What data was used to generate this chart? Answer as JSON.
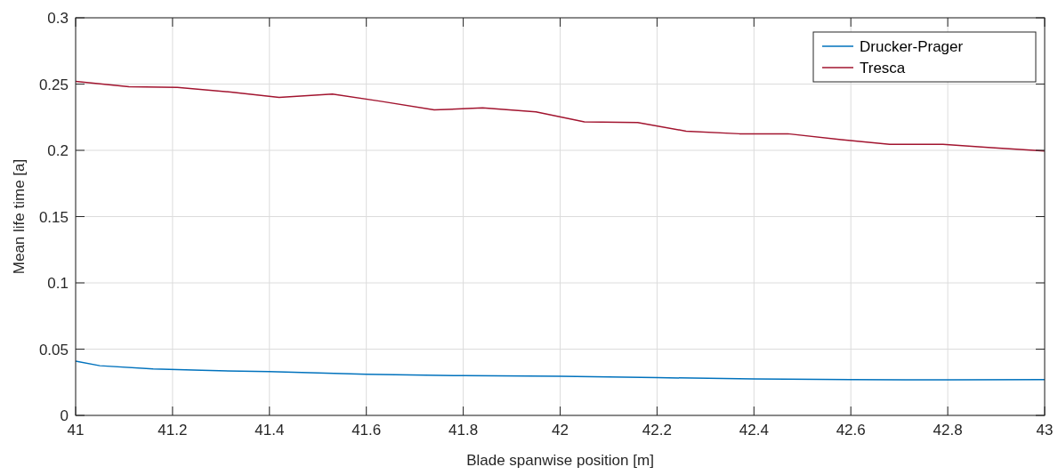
{
  "chart_data": {
    "type": "line",
    "xlabel": "Blade spanwise position [m]",
    "ylabel": "Mean life time [a]",
    "xlim": [
      41,
      43
    ],
    "xticks": [
      41,
      41.2,
      41.4,
      41.6,
      41.8,
      42,
      42.2,
      42.4,
      42.6,
      42.8,
      43
    ],
    "ylim": [
      0,
      0.3
    ],
    "yticks": [
      0,
      0.05,
      0.1,
      0.15,
      0.2,
      0.25,
      0.3
    ],
    "grid": true,
    "legend": "top right",
    "line_style": "solid",
    "marker": "none",
    "series": [
      {
        "name": "Drucker-Prager",
        "color": "#0072bd",
        "x": [
          41,
          41.05,
          41.16,
          41.26,
          41.4,
          41.6,
          41.8,
          42,
          42.2,
          42.4,
          42.6,
          42.8,
          43
        ],
        "values": [
          0.041,
          0.0375,
          0.035,
          0.034,
          0.033,
          0.031,
          0.03,
          0.0295,
          0.0285,
          0.0275,
          0.027,
          0.0268,
          0.027
        ]
      },
      {
        "name": "Tresca",
        "color": "#a2142f",
        "x": [
          41,
          41.11,
          41.21,
          41.32,
          41.42,
          41.53,
          41.63,
          41.74,
          41.84,
          41.95,
          42.05,
          42.16,
          42.26,
          42.37,
          42.47,
          42.58,
          42.68,
          42.79,
          42.89,
          43
        ],
        "values": [
          0.252,
          0.248,
          0.2475,
          0.244,
          0.24,
          0.2425,
          0.237,
          0.2305,
          0.232,
          0.229,
          0.2215,
          0.221,
          0.2145,
          0.2125,
          0.2125,
          0.208,
          0.2045,
          0.2045,
          0.202,
          0.1995
        ]
      }
    ]
  }
}
